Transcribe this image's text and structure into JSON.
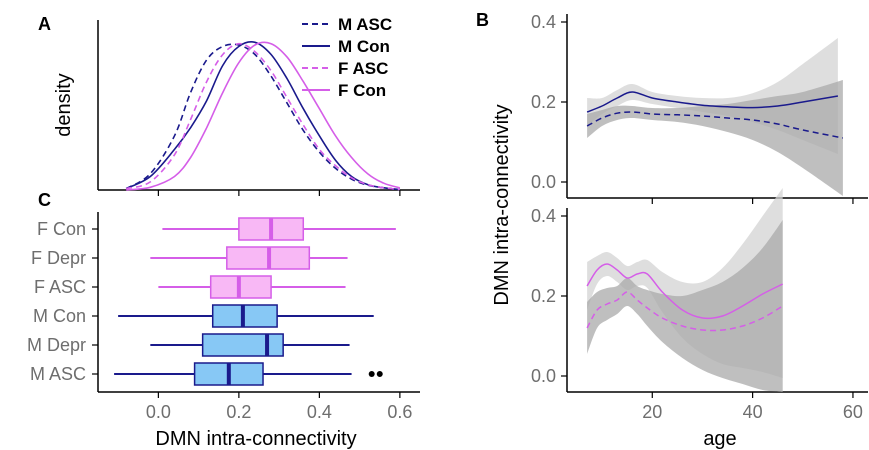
{
  "colors": {
    "male": "#1a1a8c",
    "female": "#d55ee8",
    "male_fill": "#87c8f5",
    "female_fill": "#f8b8f5",
    "ci_light": "#d3d3d3",
    "ci_dark": "#a9a9a9",
    "tick": "#6e6e6e"
  },
  "chart_data": [
    {
      "panel": "A",
      "type": "line",
      "xlabel": "",
      "ylabel": "density",
      "xlim": [
        -0.15,
        0.65
      ],
      "ylim": [
        0,
        6.2
      ],
      "x_ticks": [
        0.0,
        0.2,
        0.4,
        0.6
      ],
      "legend": "top-right",
      "series": [
        {
          "name": "M ASC",
          "line": "dashed",
          "color_key": "male",
          "x": [
            -0.08,
            -0.02,
            0.04,
            0.08,
            0.12,
            0.16,
            0.2,
            0.24,
            0.28,
            0.32,
            0.36,
            0.4,
            0.44,
            0.48,
            0.52,
            0.56,
            0.6
          ],
          "y": [
            0.05,
            0.6,
            2.0,
            3.6,
            4.8,
            5.3,
            5.35,
            5.0,
            4.2,
            3.2,
            2.2,
            1.4,
            0.8,
            0.4,
            0.18,
            0.08,
            0.02
          ]
        },
        {
          "name": "M Con",
          "line": "solid",
          "color_key": "male",
          "x": [
            -0.08,
            -0.02,
            0.04,
            0.08,
            0.12,
            0.16,
            0.2,
            0.24,
            0.28,
            0.32,
            0.36,
            0.4,
            0.44,
            0.48,
            0.52,
            0.56,
            0.6
          ],
          "y": [
            0.05,
            0.5,
            1.5,
            2.3,
            3.3,
            4.6,
            5.3,
            5.45,
            5.0,
            4.1,
            3.0,
            2.0,
            1.1,
            0.5,
            0.2,
            0.08,
            0.02
          ]
        },
        {
          "name": "F ASC",
          "line": "dashed",
          "color_key": "female",
          "x": [
            -0.08,
            -0.02,
            0.04,
            0.08,
            0.12,
            0.16,
            0.2,
            0.24,
            0.28,
            0.32,
            0.36,
            0.4,
            0.44,
            0.48,
            0.52,
            0.56,
            0.6
          ],
          "y": [
            0.05,
            0.3,
            1.3,
            2.6,
            4.0,
            5.0,
            5.4,
            5.1,
            4.4,
            3.4,
            2.4,
            1.5,
            0.9,
            0.45,
            0.2,
            0.08,
            0.02
          ]
        },
        {
          "name": "F Con",
          "line": "solid",
          "color_key": "female",
          "x": [
            -0.08,
            -0.02,
            0.04,
            0.08,
            0.12,
            0.16,
            0.2,
            0.24,
            0.28,
            0.32,
            0.36,
            0.4,
            0.44,
            0.48,
            0.52,
            0.56,
            0.6
          ],
          "y": [
            0.0,
            0.1,
            0.5,
            1.2,
            2.3,
            3.6,
            4.7,
            5.35,
            5.4,
            4.9,
            4.0,
            3.0,
            2.0,
            1.2,
            0.6,
            0.25,
            0.08
          ]
        }
      ]
    },
    {
      "panel": "B",
      "type": "line",
      "subpanel": "top",
      "xlabel": "age",
      "ylabel": "DMN intra-connectivity",
      "xlim": [
        3,
        63
      ],
      "ylim": [
        -0.04,
        0.42
      ],
      "x_ticks": [
        20,
        40,
        60
      ],
      "y_ticks": [
        0.0,
        0.2,
        0.4
      ],
      "series": [
        {
          "name": "M Con",
          "line": "solid",
          "color_key": "male",
          "x": [
            7,
            10,
            13,
            16,
            20,
            25,
            30,
            35,
            40,
            45,
            50,
            57
          ],
          "y": [
            0.175,
            0.19,
            0.21,
            0.225,
            0.21,
            0.2,
            0.192,
            0.188,
            0.186,
            0.19,
            0.2,
            0.215
          ],
          "ci_lo": [
            0.14,
            0.17,
            0.19,
            0.205,
            0.195,
            0.185,
            0.175,
            0.165,
            0.15,
            0.13,
            0.105,
            0.07
          ],
          "ci_hi": [
            0.21,
            0.21,
            0.23,
            0.245,
            0.225,
            0.215,
            0.21,
            0.21,
            0.222,
            0.25,
            0.295,
            0.36
          ]
        },
        {
          "name": "M ASC",
          "line": "dashed",
          "color_key": "male",
          "x": [
            7,
            10,
            13,
            16,
            20,
            25,
            30,
            35,
            40,
            45,
            50,
            58
          ],
          "y": [
            0.14,
            0.16,
            0.172,
            0.175,
            0.17,
            0.168,
            0.165,
            0.16,
            0.155,
            0.145,
            0.13,
            0.11
          ],
          "ci_lo": [
            0.11,
            0.14,
            0.155,
            0.16,
            0.155,
            0.15,
            0.14,
            0.125,
            0.105,
            0.075,
            0.035,
            -0.035
          ],
          "ci_hi": [
            0.17,
            0.18,
            0.19,
            0.19,
            0.185,
            0.185,
            0.19,
            0.195,
            0.205,
            0.215,
            0.225,
            0.255
          ]
        }
      ]
    },
    {
      "panel": "B",
      "type": "line",
      "subpanel": "bottom",
      "xlabel": "age",
      "ylabel": "DMN intra-connectivity",
      "xlim": [
        3,
        63
      ],
      "ylim": [
        -0.04,
        0.42
      ],
      "x_ticks": [
        20,
        40,
        60
      ],
      "y_ticks": [
        0.0,
        0.2,
        0.4
      ],
      "series": [
        {
          "name": "F Con",
          "line": "solid",
          "color_key": "female",
          "x": [
            7,
            9,
            11,
            13,
            15,
            17,
            19,
            22,
            26,
            30,
            34,
            38,
            42,
            46
          ],
          "y": [
            0.225,
            0.265,
            0.28,
            0.265,
            0.245,
            0.255,
            0.255,
            0.21,
            0.165,
            0.145,
            0.15,
            0.175,
            0.205,
            0.23
          ],
          "ci_lo": [
            0.165,
            0.23,
            0.25,
            0.235,
            0.215,
            0.225,
            0.22,
            0.16,
            0.095,
            0.055,
            0.03,
            0.02,
            0.01,
            -0.005
          ],
          "ci_hi": [
            0.285,
            0.3,
            0.31,
            0.295,
            0.275,
            0.285,
            0.29,
            0.26,
            0.235,
            0.235,
            0.27,
            0.33,
            0.4,
            0.47
          ]
        },
        {
          "name": "F ASC",
          "line": "dashed",
          "color_key": "female",
          "x": [
            7,
            9,
            11,
            13,
            15,
            17,
            19,
            22,
            26,
            30,
            34,
            38,
            42,
            46
          ],
          "y": [
            0.12,
            0.165,
            0.18,
            0.19,
            0.21,
            0.19,
            0.17,
            0.145,
            0.125,
            0.115,
            0.115,
            0.125,
            0.145,
            0.175
          ],
          "ci_lo": [
            0.055,
            0.12,
            0.14,
            0.155,
            0.175,
            0.155,
            0.125,
            0.085,
            0.045,
            0.015,
            -0.005,
            -0.02,
            -0.035,
            -0.04
          ],
          "ci_hi": [
            0.185,
            0.21,
            0.22,
            0.225,
            0.245,
            0.225,
            0.215,
            0.205,
            0.2,
            0.215,
            0.235,
            0.27,
            0.32,
            0.39
          ]
        }
      ]
    },
    {
      "panel": "C",
      "type": "boxplot",
      "xlabel": "DMN intra-connectivity",
      "ylabel": "",
      "xlim": [
        -0.15,
        0.65
      ],
      "x_ticks": [
        0.0,
        0.2,
        0.4,
        0.6
      ],
      "categories": [
        "F Con",
        "F Depr",
        "F ASC",
        "M Con",
        "M Depr",
        "M ASC"
      ],
      "boxes": [
        {
          "label": "F Con",
          "group": "female",
          "whisker_lo": 0.01,
          "q1": 0.2,
          "median": 0.28,
          "q3": 0.36,
          "whisker_hi": 0.59,
          "outliers": []
        },
        {
          "label": "F Depr",
          "group": "female",
          "whisker_lo": -0.02,
          "q1": 0.17,
          "median": 0.275,
          "q3": 0.375,
          "whisker_hi": 0.47,
          "outliers": []
        },
        {
          "label": "F ASC",
          "group": "female",
          "whisker_lo": 0.0,
          "q1": 0.13,
          "median": 0.2,
          "q3": 0.28,
          "whisker_hi": 0.465,
          "outliers": []
        },
        {
          "label": "M Con",
          "group": "male",
          "whisker_lo": -0.1,
          "q1": 0.135,
          "median": 0.21,
          "q3": 0.295,
          "whisker_hi": 0.535,
          "outliers": []
        },
        {
          "label": "M Depr",
          "group": "male",
          "whisker_lo": -0.02,
          "q1": 0.11,
          "median": 0.27,
          "q3": 0.31,
          "whisker_hi": 0.475,
          "outliers": []
        },
        {
          "label": "M ASC",
          "group": "male",
          "whisker_lo": -0.11,
          "q1": 0.09,
          "median": 0.175,
          "q3": 0.26,
          "whisker_hi": 0.48,
          "outliers": [
            0.53,
            0.55
          ]
        }
      ]
    }
  ],
  "labels": {
    "panel_a": "A",
    "panel_b": "B",
    "panel_c": "C",
    "a_ylabel": "density",
    "b_xlabel": "age",
    "b_ylabel": "DMN intra-connectivity",
    "c_xlabel": "DMN intra-connectivity",
    "legend": [
      "M ASC",
      "M Con",
      "F ASC",
      "F Con"
    ],
    "ab_xticks": [
      "0.0",
      "0.2",
      "0.4",
      "0.6"
    ],
    "b_yticks": [
      "0.0",
      "0.2",
      "0.4"
    ],
    "b_xticks": [
      "20",
      "40",
      "60"
    ]
  }
}
